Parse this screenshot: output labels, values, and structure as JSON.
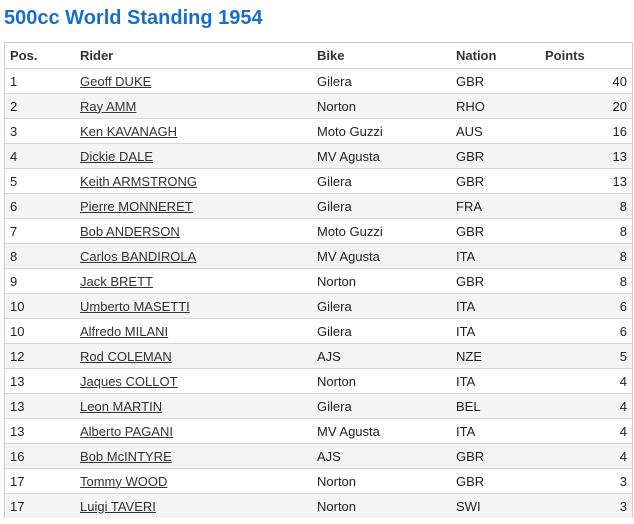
{
  "page": {
    "title": "500cc World Standing 1954"
  },
  "table": {
    "headers": {
      "pos": "Pos.",
      "rider": "Rider",
      "bike": "Bike",
      "nation": "Nation",
      "points": "Points"
    },
    "rows": [
      {
        "pos": "1",
        "rider": "Geoff DUKE",
        "bike": "Gilera",
        "nation": "GBR",
        "points": "40"
      },
      {
        "pos": "2",
        "rider": "Ray AMM",
        "bike": "Norton",
        "nation": "RHO",
        "points": "20"
      },
      {
        "pos": "3",
        "rider": "Ken KAVANAGH",
        "bike": "Moto Guzzi",
        "nation": "AUS",
        "points": "16"
      },
      {
        "pos": "4",
        "rider": "Dickie DALE",
        "bike": "MV Agusta",
        "nation": "GBR",
        "points": "13"
      },
      {
        "pos": "5",
        "rider": "Keith ARMSTRONG",
        "bike": "Gilera",
        "nation": "GBR",
        "points": "13"
      },
      {
        "pos": "6",
        "rider": "Pierre MONNERET",
        "bike": "Gilera",
        "nation": "FRA",
        "points": "8"
      },
      {
        "pos": "7",
        "rider": "Bob ANDERSON",
        "bike": "Moto Guzzi",
        "nation": "GBR",
        "points": "8"
      },
      {
        "pos": "8",
        "rider": "Carlos BANDIROLA",
        "bike": "MV Agusta",
        "nation": "ITA",
        "points": "8"
      },
      {
        "pos": "9",
        "rider": "Jack BRETT",
        "bike": "Norton",
        "nation": "GBR",
        "points": "8"
      },
      {
        "pos": "10",
        "rider": "Umberto MASETTI",
        "bike": "Gilera",
        "nation": "ITA",
        "points": "6"
      },
      {
        "pos": "10",
        "rider": "Alfredo MILANI",
        "bike": "Gilera",
        "nation": "ITA",
        "points": "6"
      },
      {
        "pos": "12",
        "rider": "Rod COLEMAN",
        "bike": "AJS",
        "nation": "NZE",
        "points": "5"
      },
      {
        "pos": "13",
        "rider": "Jaques COLLOT",
        "bike": "Norton",
        "nation": "ITA",
        "points": "4"
      },
      {
        "pos": "13",
        "rider": "Leon MARTIN",
        "bike": "Gilera",
        "nation": "BEL",
        "points": "4"
      },
      {
        "pos": "13",
        "rider": "Alberto PAGANI",
        "bike": "MV Agusta",
        "nation": "ITA",
        "points": "4"
      },
      {
        "pos": "16",
        "rider": "Bob McINTYRE",
        "bike": "AJS",
        "nation": "GBR",
        "points": "4"
      },
      {
        "pos": "17",
        "rider": "Tommy WOOD",
        "bike": "Norton",
        "nation": "GBR",
        "points": "3"
      },
      {
        "pos": "17",
        "rider": "Luigi TAVERI",
        "bike": "Norton",
        "nation": "SWI",
        "points": "3"
      }
    ]
  },
  "colors": {
    "title": "#1a6fc4",
    "row_alt": "#f4f4f4",
    "border": "#cccccc"
  }
}
